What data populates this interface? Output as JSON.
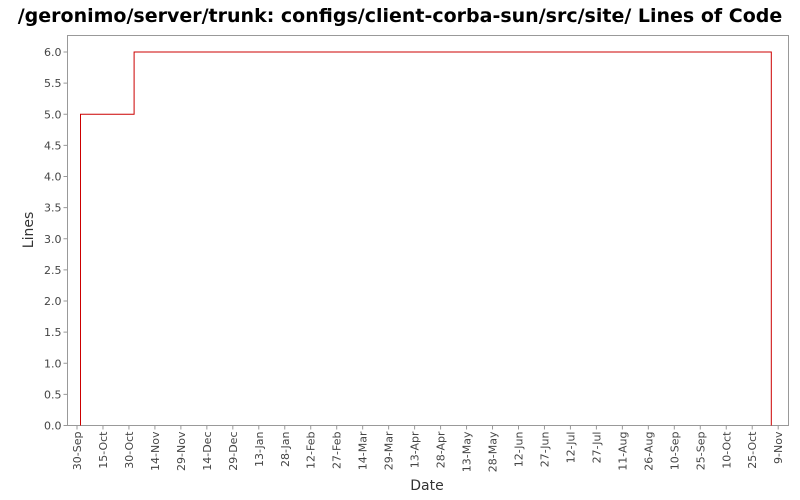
{
  "chart_data": {
    "type": "line",
    "step": true,
    "title": "/geronimo/server/trunk: configs/client-corba-sun/src/site/ Lines of Code",
    "xlabel": "Date",
    "ylabel": "Lines",
    "ylim": [
      0.0,
      6.0
    ],
    "yticks": [
      "0.0",
      "0.5",
      "1.0",
      "1.5",
      "2.0",
      "2.5",
      "3.0",
      "3.5",
      "4.0",
      "4.5",
      "5.0",
      "5.5",
      "6.0"
    ],
    "xticks": [
      "30-Sep",
      "15-Oct",
      "30-Oct",
      "14-Nov",
      "29-Nov",
      "14-Dec",
      "29-Dec",
      "13-Jan",
      "28-Jan",
      "12-Feb",
      "27-Feb",
      "14-Mar",
      "29-Mar",
      "13-Apr",
      "28-Apr",
      "13-May",
      "28-May",
      "12-Jun",
      "27-Jun",
      "12-Jul",
      "27-Jul",
      "11-Aug",
      "26-Aug",
      "10-Sep",
      "25-Sep",
      "10-Oct",
      "25-Oct",
      "9-Nov"
    ],
    "grid": false,
    "legend": "none",
    "series": [
      {
        "color": "#cc0000",
        "points": [
          {
            "x": "2 Oct",
            "y": 0
          },
          {
            "x": "2 Oct",
            "y": 5
          },
          {
            "x": "2 Nov",
            "y": 5
          },
          {
            "x": "2 Nov",
            "y": 6
          },
          {
            "x": "5 Nov (following year)",
            "y": 6
          },
          {
            "x": "5 Nov (following year)",
            "y": 0
          }
        ]
      }
    ]
  }
}
